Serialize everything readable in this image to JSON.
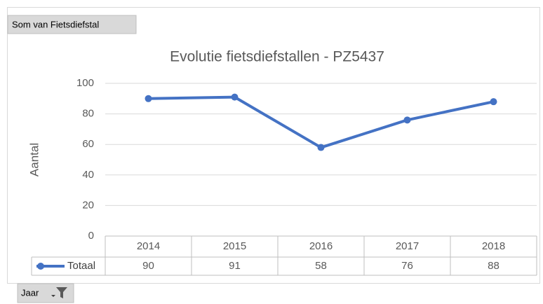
{
  "pivot_buttons": {
    "value_field": "Som van Fietsdiefstal",
    "axis_field": "Jaar"
  },
  "chart_data": {
    "type": "line",
    "title": "Evolutie fietsdiefstallen - PZ5437",
    "y_axis_label": "Aantal",
    "categories": [
      "2014",
      "2015",
      "2016",
      "2017",
      "2018"
    ],
    "series": [
      {
        "name": "Totaal",
        "color": "#4472c4",
        "values": [
          90,
          91,
          58,
          76,
          88
        ]
      }
    ],
    "ylim": [
      0,
      100
    ],
    "yticks": [
      0,
      20,
      40,
      60,
      80,
      100
    ],
    "grid": true
  }
}
